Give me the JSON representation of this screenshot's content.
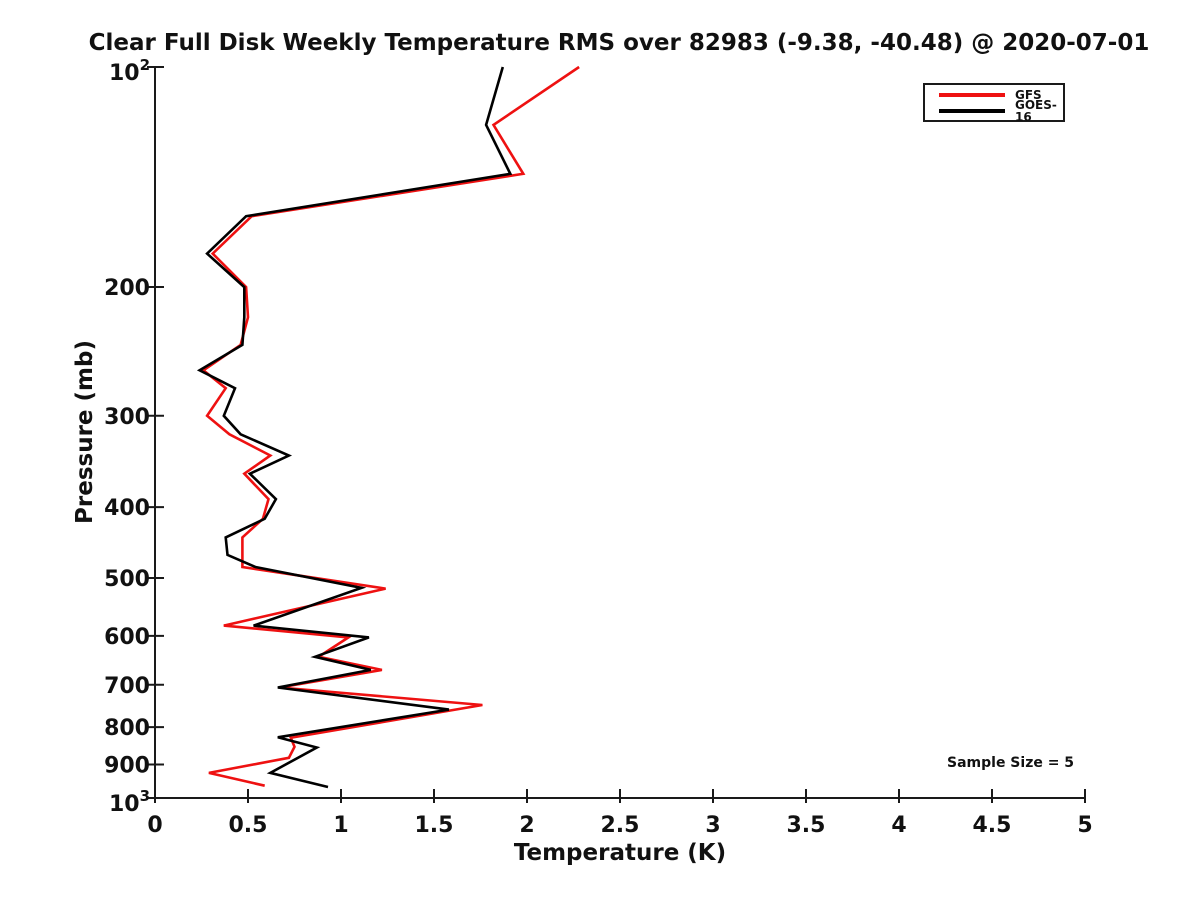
{
  "title": "Clear Full Disk Weekly Temperature RMS over 82983 (-9.38, -40.48) @ 2020-07-01",
  "annotations": {
    "sample_size": "Sample Size = 5"
  },
  "legend": {
    "items": [
      {
        "label": "GFS",
        "color": "#ee1111"
      },
      {
        "label": "GOES-16",
        "color": "#000000"
      }
    ]
  },
  "axes": {
    "x_label": "Temperature (K)",
    "y_label": "Pressure (mb)"
  },
  "chart_data": {
    "type": "line",
    "title": "Clear Full Disk Weekly Temperature RMS over 82983 (-9.38, -40.48) @ 2020-07-01",
    "xlabel": "Temperature (K)",
    "ylabel": "Pressure (mb)",
    "xlim": [
      0,
      5
    ],
    "x_ticks": [
      0,
      0.5,
      1,
      1.5,
      2,
      2.5,
      3,
      3.5,
      4,
      4.5,
      5
    ],
    "x_tick_labels": [
      "0",
      "0.5",
      "1",
      "1.5",
      "2",
      "2.5",
      "3",
      "3.5",
      "4",
      "4.5",
      "5"
    ],
    "y_scale": "log",
    "y_axis_reversed": true,
    "ylim": [
      100,
      1000
    ],
    "y_ticks": [
      100,
      200,
      300,
      400,
      500,
      600,
      700,
      800,
      900,
      1000
    ],
    "y_tick_labels": [
      "10|2",
      "200",
      "300",
      "400",
      "500",
      "600",
      "700",
      "800",
      "900",
      "10|3"
    ],
    "grid": false,
    "legend_position": "top-right",
    "annotation": "Sample Size = 5",
    "axis_color": "#1a1a1a",
    "series": [
      {
        "name": "GFS",
        "color": "#ee1111",
        "points_TK_vs_Pmb": [
          [
            2.28,
            100
          ],
          [
            1.82,
            120
          ],
          [
            1.98,
            140
          ],
          [
            0.52,
            160
          ],
          [
            0.31,
            180
          ],
          [
            0.49,
            200
          ],
          [
            0.5,
            220
          ],
          [
            0.46,
            240
          ],
          [
            0.26,
            260
          ],
          [
            0.38,
            275
          ],
          [
            0.28,
            300
          ],
          [
            0.4,
            318
          ],
          [
            0.62,
            340
          ],
          [
            0.48,
            360
          ],
          [
            0.61,
            390
          ],
          [
            0.58,
            415
          ],
          [
            0.47,
            440
          ],
          [
            0.47,
            465
          ],
          [
            0.47,
            483
          ],
          [
            1.24,
            517
          ],
          [
            0.37,
            581
          ],
          [
            1.04,
            603
          ],
          [
            0.88,
            641
          ],
          [
            1.22,
            668
          ],
          [
            0.67,
            706
          ],
          [
            1.76,
            746
          ],
          [
            0.73,
            827
          ],
          [
            0.75,
            851
          ],
          [
            0.72,
            881
          ],
          [
            0.29,
            924
          ],
          [
            0.59,
            962
          ]
        ]
      },
      {
        "name": "GOES-16",
        "color": "#000000",
        "points_TK_vs_Pmb": [
          [
            1.87,
            100
          ],
          [
            1.78,
            120
          ],
          [
            1.91,
            140
          ],
          [
            0.49,
            160
          ],
          [
            0.28,
            180
          ],
          [
            0.48,
            200
          ],
          [
            0.48,
            220
          ],
          [
            0.47,
            240
          ],
          [
            0.24,
            260
          ],
          [
            0.43,
            275
          ],
          [
            0.37,
            300
          ],
          [
            0.46,
            318
          ],
          [
            0.72,
            340
          ],
          [
            0.51,
            360
          ],
          [
            0.65,
            390
          ],
          [
            0.59,
            415
          ],
          [
            0.38,
            440
          ],
          [
            0.39,
            465
          ],
          [
            0.54,
            483
          ],
          [
            1.11,
            516
          ],
          [
            0.53,
            581
          ],
          [
            1.15,
            603
          ],
          [
            0.86,
            641
          ],
          [
            1.16,
            668
          ],
          [
            0.66,
            706
          ],
          [
            1.58,
            757
          ],
          [
            0.66,
            826
          ],
          [
            0.87,
            853
          ],
          [
            0.62,
            924
          ],
          [
            0.93,
            966
          ]
        ]
      }
    ]
  }
}
